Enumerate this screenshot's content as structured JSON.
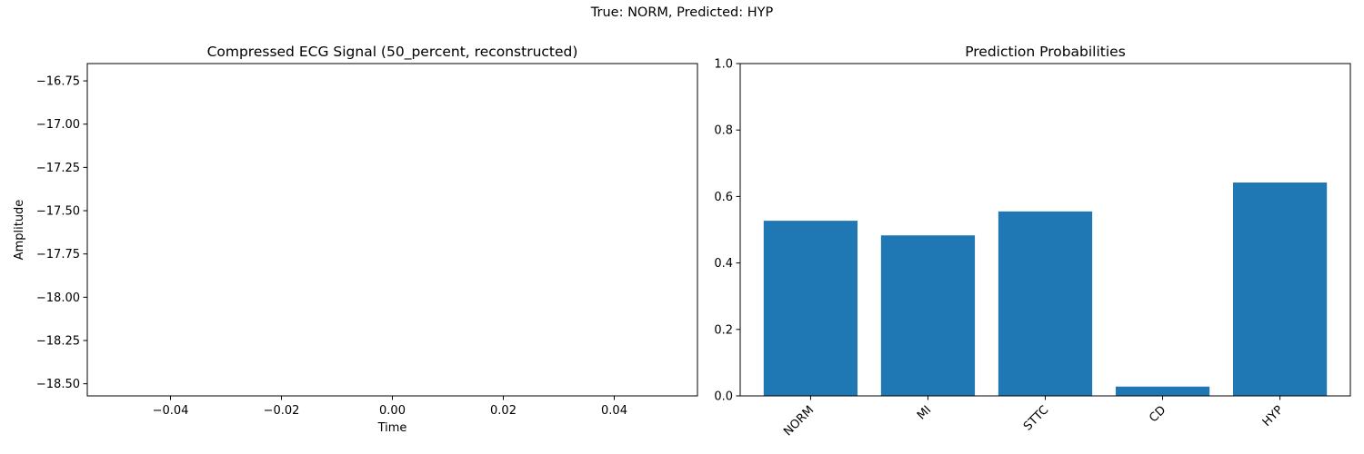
{
  "suptitle": "True: NORM, Predicted: HYP",
  "chart_data": [
    {
      "type": "line",
      "title": "Compressed ECG Signal (50_percent, reconstructed)",
      "xlabel": "Time",
      "ylabel": "Amplitude",
      "xlim": [
        -0.055,
        0.055
      ],
      "ylim": [
        -18.57,
        -16.65
      ],
      "xticks": [
        -0.04,
        -0.02,
        0.0,
        0.02,
        0.04
      ],
      "xtick_labels": [
        "−0.04",
        "−0.02",
        "0.00",
        "0.02",
        "0.04"
      ],
      "yticks": [
        -16.75,
        -17.0,
        -17.25,
        -17.5,
        -17.75,
        -18.0,
        -18.25,
        -18.5
      ],
      "ytick_labels": [
        "−16.75",
        "−17.00",
        "−17.25",
        "−17.50",
        "−17.75",
        "−18.00",
        "−18.25",
        "−18.50"
      ],
      "series": [],
      "grid": false
    },
    {
      "type": "bar",
      "title": "Prediction Probabilities",
      "categories": [
        "NORM",
        "MI",
        "STTC",
        "CD",
        "HYP"
      ],
      "values": [
        0.527,
        0.483,
        0.555,
        0.028,
        0.642
      ],
      "ylim": [
        0,
        1
      ],
      "yticks": [
        0.0,
        0.2,
        0.4,
        0.6,
        0.8,
        1.0
      ],
      "ytick_labels": [
        "0.0",
        "0.2",
        "0.4",
        "0.6",
        "0.8",
        "1.0"
      ],
      "bar_color": "#1f77b4",
      "xtick_rotation": 45,
      "grid": false
    }
  ]
}
